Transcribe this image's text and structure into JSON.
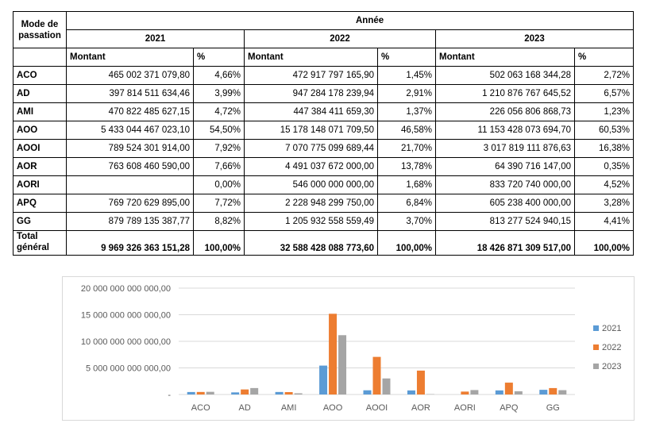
{
  "table": {
    "header_mode": "Mode de passation",
    "header_mode_line1": "Mode de",
    "header_mode_line2": "passation",
    "header_group": "Année",
    "years": [
      "2021",
      "2022",
      "2023"
    ],
    "sub_amount": "Montant",
    "sub_pct": "%",
    "rows": [
      {
        "mode": "ACO",
        "v2021": "465 002 371 079,80",
        "p2021": "4,66%",
        "v2022": "472 917 797 165,90",
        "p2022": "1,45%",
        "v2023": "502 063 168 344,28",
        "p2023": "2,72%"
      },
      {
        "mode": "AD",
        "v2021": "397 814 511 634,46",
        "p2021": "3,99%",
        "v2022": "947 284 178 239,94",
        "p2022": "2,91%",
        "v2023": "1 210 876 767 645,52",
        "p2023": "6,57%"
      },
      {
        "mode": "AMI",
        "v2021": "470 822 485 627,15",
        "p2021": "4,72%",
        "v2022": "447 384 411 659,30",
        "p2022": "1,37%",
        "v2023": "226 056 806 868,73",
        "p2023": "1,23%"
      },
      {
        "mode": "AOO",
        "v2021": "5 433 044 467 023,10",
        "p2021": "54,50%",
        "v2022": "15 178 148 071 709,50",
        "p2022": "46,58%",
        "v2023": "11 153 428 073 694,70",
        "p2023": "60,53%"
      },
      {
        "mode": "AOOI",
        "v2021": "789 524 301 914,00",
        "p2021": "7,92%",
        "v2022": "7 070 775 099 689,44",
        "p2022": "21,70%",
        "v2023": "3 017 819 111 876,63",
        "p2023": "16,38%"
      },
      {
        "mode": "AOR",
        "v2021": "763 608 460 590,00",
        "p2021": "7,66%",
        "v2022": "4 491 037 672 000,00",
        "p2022": "13,78%",
        "v2023": "64 390 716 147,00",
        "p2023": "0,35%"
      },
      {
        "mode": "AORI",
        "v2021": "",
        "p2021": "0,00%",
        "v2022": "546 000 000 000,00",
        "p2022": "1,68%",
        "v2023": "833 720 740 000,00",
        "p2023": "4,52%"
      },
      {
        "mode": "APQ",
        "v2021": "769 720 629 895,00",
        "p2021": "7,72%",
        "v2022": "2 228 948 299 750,00",
        "p2022": "6,84%",
        "v2023": "605 238 400 000,00",
        "p2023": "3,28%"
      },
      {
        "mode": "GG",
        "v2021": "879 789 135 387,77",
        "p2021": "8,82%",
        "v2022": "1 205 932 558 559,49",
        "p2022": "3,70%",
        "v2023": "813 277 524 940,15",
        "p2023": "4,41%"
      }
    ],
    "total": {
      "label_line1": "Total",
      "label_line2": "général",
      "v2021": "9 969 326 363 151,28",
      "p2021": "100,00%",
      "v2022": "32 588 428 088 773,60",
      "p2022": "100,00%",
      "v2023": "18 426 871 309 517,00",
      "p2023": "100,00%"
    }
  },
  "chart_data": {
    "type": "bar",
    "title": "",
    "xlabel": "",
    "ylabel": "",
    "categories": [
      "ACO",
      "AD",
      "AMI",
      "AOO",
      "AOOI",
      "AOR",
      "AORI",
      "APQ",
      "GG"
    ],
    "series": [
      {
        "name": "2021",
        "color": "#5b9bd5",
        "values": [
          465002371079.8,
          397814511634.46,
          470822485627.15,
          5433044467023.1,
          789524301914.0,
          763608460590.0,
          0,
          769720629895.0,
          879789135387.77
        ]
      },
      {
        "name": "2022",
        "color": "#ed7d31",
        "values": [
          472917797165.9,
          947284178239.94,
          447384411659.3,
          15178148071709.5,
          7070775099689.44,
          4491037672000.0,
          546000000000.0,
          2228948299750.0,
          1205932558559.49
        ]
      },
      {
        "name": "2023",
        "color": "#a5a5a5",
        "values": [
          502063168344.28,
          1210876767645.52,
          226056806868.73,
          11153428073694.7,
          3017819111876.63,
          64390716147.0,
          833720740000.0,
          605238400000.0,
          813277524940.15
        ]
      }
    ],
    "ylim": [
      0,
      20000000000000
    ],
    "yticks": [
      0,
      5000000000000,
      10000000000000,
      15000000000000,
      20000000000000
    ],
    "ytick_labels": [
      "-",
      "5 000 000 000 000,00",
      "10 000 000 000 000,00",
      "15 000 000 000 000,00",
      "20 000 000 000 000,00"
    ],
    "grid": true,
    "legend": "right"
  },
  "colors": {
    "gridline": "#d9d9d9",
    "axis_text": "#595959",
    "frame": "#d9d9d9"
  }
}
